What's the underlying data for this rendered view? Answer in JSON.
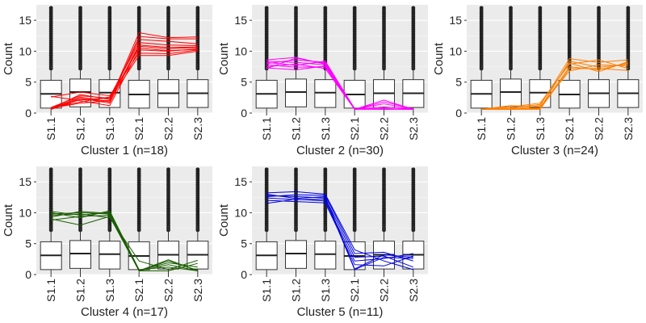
{
  "figure": {
    "shared_ylabel": "Count",
    "categories": [
      "S1.1",
      "S1.2",
      "S1.3",
      "S2.1",
      "S2.2",
      "S2.3"
    ],
    "y_ticks": [
      0,
      5,
      10,
      15
    ],
    "ylim": [
      0,
      17.5
    ]
  },
  "chart_data": [
    {
      "type": "line",
      "title": "Cluster 1 (n=18)",
      "ylabel": "Count",
      "color": "#ff0000",
      "boxplot": [
        {
          "category": "S1.1",
          "q1": 0.8,
          "median": 3.1,
          "q3": 5.3
        },
        {
          "category": "S1.2",
          "q1": 1.0,
          "median": 3.4,
          "q3": 5.5
        },
        {
          "category": "S1.3",
          "q1": 0.9,
          "median": 3.3,
          "q3": 5.4
        },
        {
          "category": "S2.1",
          "q1": 0.8,
          "median": 3.0,
          "q3": 5.3
        },
        {
          "category": "S2.2",
          "q1": 0.9,
          "median": 3.2,
          "q3": 5.4
        },
        {
          "category": "S2.3",
          "q1": 0.9,
          "median": 3.2,
          "q3": 5.4
        }
      ],
      "series": [
        {
          "values": [
            0.6,
            2.2,
            2.0,
            13.0,
            12.2,
            12.3
          ]
        },
        {
          "values": [
            0.7,
            2.6,
            1.8,
            12.4,
            12.0,
            12.0
          ]
        },
        {
          "values": [
            0.9,
            2.8,
            2.4,
            11.9,
            11.6,
            11.2
          ]
        },
        {
          "values": [
            0.8,
            1.8,
            2.6,
            11.4,
            11.0,
            10.9
          ]
        },
        {
          "values": [
            0.6,
            2.4,
            1.6,
            10.8,
            10.4,
            10.6
          ]
        },
        {
          "values": [
            2.7,
            2.0,
            1.2,
            10.2,
            10.0,
            10.4
          ]
        },
        {
          "values": [
            2.6,
            3.4,
            2.8,
            9.7,
            9.6,
            10.2
          ]
        },
        {
          "values": [
            0.7,
            3.0,
            2.2,
            9.3,
            9.3,
            10.0
          ]
        },
        {
          "values": [
            0.8,
            1.6,
            2.0,
            11.0,
            10.6,
            10.7
          ]
        },
        {
          "values": [
            0.9,
            2.2,
            2.4,
            10.5,
            10.1,
            10.3
          ]
        }
      ]
    },
    {
      "type": "line",
      "title": "Cluster 2 (n=30)",
      "ylabel": "",
      "color": "#ff00ff",
      "boxplot": [
        {
          "category": "S1.1",
          "q1": 0.8,
          "median": 3.1,
          "q3": 5.3
        },
        {
          "category": "S1.2",
          "q1": 1.0,
          "median": 3.4,
          "q3": 5.5
        },
        {
          "category": "S1.3",
          "q1": 0.9,
          "median": 3.3,
          "q3": 5.4
        },
        {
          "category": "S2.1",
          "q1": 0.8,
          "median": 3.0,
          "q3": 5.3
        },
        {
          "category": "S2.2",
          "q1": 0.9,
          "median": 3.2,
          "q3": 5.4
        },
        {
          "category": "S2.3",
          "q1": 0.9,
          "median": 3.2,
          "q3": 5.4
        }
      ],
      "series": [
        {
          "values": [
            7.2,
            8.9,
            8.0,
            0.6,
            2.1,
            0.6
          ]
        },
        {
          "values": [
            8.4,
            8.2,
            7.8,
            0.6,
            0.7,
            0.6
          ]
        },
        {
          "values": [
            7.8,
            7.4,
            7.5,
            0.6,
            1.5,
            0.6
          ]
        },
        {
          "values": [
            8.0,
            8.6,
            8.2,
            0.7,
            0.6,
            0.7
          ]
        },
        {
          "values": [
            7.5,
            7.9,
            7.2,
            0.6,
            1.0,
            0.6
          ]
        },
        {
          "values": [
            8.6,
            9.0,
            7.9,
            0.6,
            0.6,
            0.6
          ]
        },
        {
          "values": [
            7.3,
            7.0,
            7.6,
            0.6,
            1.8,
            0.7
          ]
        },
        {
          "values": [
            8.2,
            7.7,
            8.4,
            0.7,
            0.7,
            0.6
          ]
        }
      ]
    },
    {
      "type": "line",
      "title": "Cluster 3 (n=24)",
      "ylabel": "",
      "color": "#ff7f00",
      "boxplot": [
        {
          "category": "S1.1",
          "q1": 0.8,
          "median": 3.1,
          "q3": 5.3
        },
        {
          "category": "S1.2",
          "q1": 1.0,
          "median": 3.4,
          "q3": 5.5
        },
        {
          "category": "S1.3",
          "q1": 0.9,
          "median": 3.3,
          "q3": 5.4
        },
        {
          "category": "S2.1",
          "q1": 0.8,
          "median": 3.0,
          "q3": 5.3
        },
        {
          "category": "S2.2",
          "q1": 0.9,
          "median": 3.2,
          "q3": 5.4
        },
        {
          "category": "S2.3",
          "q1": 0.9,
          "median": 3.2,
          "q3": 5.4
        }
      ],
      "series": [
        {
          "values": [
            0.6,
            0.6,
            1.2,
            8.8,
            8.2,
            8.6
          ]
        },
        {
          "values": [
            0.6,
            0.7,
            0.8,
            8.4,
            7.4,
            7.9
          ]
        },
        {
          "values": [
            0.6,
            1.0,
            1.6,
            7.9,
            8.6,
            7.2
          ]
        },
        {
          "values": [
            0.6,
            0.6,
            0.7,
            7.5,
            7.0,
            8.1
          ]
        },
        {
          "values": [
            0.6,
            1.2,
            1.0,
            6.8,
            7.8,
            7.6
          ]
        },
        {
          "values": [
            0.6,
            0.8,
            1.4,
            8.1,
            6.7,
            8.3
          ]
        },
        {
          "values": [
            0.6,
            0.6,
            0.6,
            7.2,
            7.2,
            6.9
          ]
        }
      ]
    },
    {
      "type": "line",
      "title": "Cluster 4 (n=17)",
      "ylabel": "Count",
      "color": "#1a5e00",
      "boxplot": [
        {
          "category": "S1.1",
          "q1": 0.8,
          "median": 3.1,
          "q3": 5.3
        },
        {
          "category": "S1.2",
          "q1": 1.0,
          "median": 3.4,
          "q3": 5.5
        },
        {
          "category": "S1.3",
          "q1": 0.9,
          "median": 3.3,
          "q3": 5.4
        },
        {
          "category": "S2.1",
          "q1": 0.8,
          "median": 3.0,
          "q3": 5.3
        },
        {
          "category": "S2.2",
          "q1": 0.9,
          "median": 3.2,
          "q3": 5.4
        },
        {
          "category": "S2.3",
          "q1": 0.9,
          "median": 3.2,
          "q3": 5.4
        }
      ],
      "series": [
        {
          "values": [
            9.8,
            10.0,
            9.8,
            0.6,
            2.4,
            0.6
          ]
        },
        {
          "values": [
            10.2,
            9.6,
            10.1,
            0.7,
            1.9,
            1.2
          ]
        },
        {
          "values": [
            9.0,
            8.0,
            9.4,
            0.6,
            1.6,
            0.6
          ]
        },
        {
          "values": [
            9.6,
            9.8,
            9.2,
            2.2,
            0.8,
            2.3
          ]
        },
        {
          "values": [
            9.3,
            10.2,
            9.9,
            0.6,
            2.2,
            0.7
          ]
        },
        {
          "values": [
            10.0,
            9.2,
            10.3,
            0.8,
            1.2,
            0.6
          ]
        },
        {
          "values": [
            8.8,
            9.4,
            9.6,
            0.6,
            0.6,
            1.8
          ]
        }
      ]
    },
    {
      "type": "line",
      "title": "Cluster 5 (n=11)",
      "ylabel": "Count",
      "color": "#0000dd",
      "boxplot": [
        {
          "category": "S1.1",
          "q1": 0.8,
          "median": 3.1,
          "q3": 5.3
        },
        {
          "category": "S1.2",
          "q1": 1.0,
          "median": 3.4,
          "q3": 5.5
        },
        {
          "category": "S1.3",
          "q1": 0.9,
          "median": 3.3,
          "q3": 5.4
        },
        {
          "category": "S2.1",
          "q1": 0.8,
          "median": 3.0,
          "q3": 5.3
        },
        {
          "category": "S2.2",
          "q1": 0.9,
          "median": 3.2,
          "q3": 5.4
        },
        {
          "category": "S2.3",
          "q1": 0.9,
          "median": 3.2,
          "q3": 5.4
        }
      ],
      "series": [
        {
          "values": [
            13.2,
            13.4,
            13.0,
            4.0,
            2.2,
            0.8
          ]
        },
        {
          "values": [
            12.8,
            12.6,
            12.4,
            2.8,
            3.0,
            1.2
          ]
        },
        {
          "values": [
            12.4,
            12.1,
            12.2,
            0.8,
            2.8,
            2.6
          ]
        },
        {
          "values": [
            12.0,
            11.8,
            11.6,
            1.6,
            1.4,
            3.0
          ]
        },
        {
          "values": [
            12.6,
            12.9,
            12.8,
            3.4,
            3.6,
            2.2
          ]
        },
        {
          "values": [
            11.5,
            12.2,
            11.9,
            2.2,
            2.6,
            3.4
          ]
        },
        {
          "values": [
            13.0,
            12.3,
            12.6,
            0.9,
            3.2,
            2.8
          ]
        }
      ]
    }
  ]
}
